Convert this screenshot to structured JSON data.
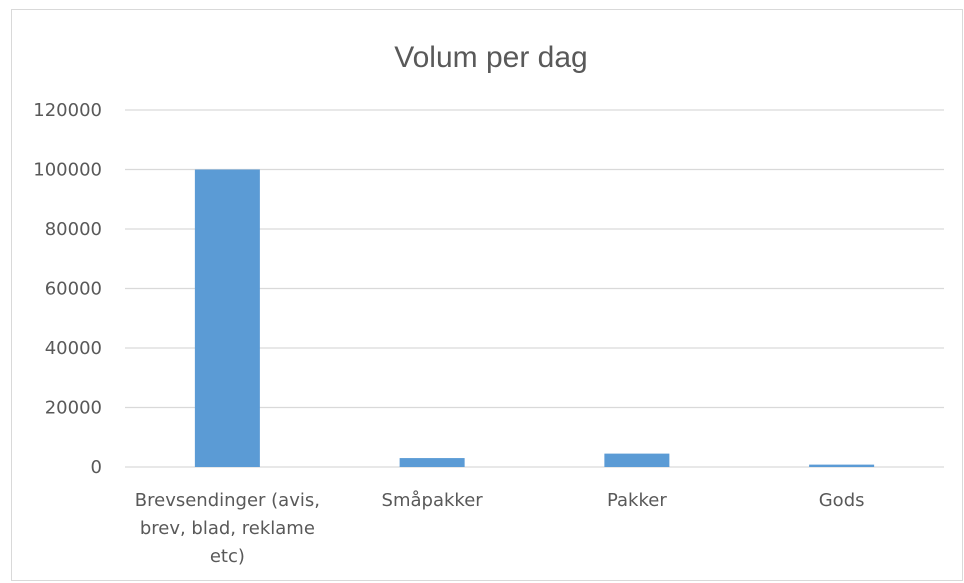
{
  "chart_data": {
    "type": "bar",
    "title": "Volum per dag",
    "categories": [
      [
        "Brevsendinger (avis,",
        "brev, blad, reklame",
        "etc)"
      ],
      [
        "Småpakker"
      ],
      [
        "Pakker"
      ],
      [
        "Gods"
      ]
    ],
    "values": [
      100000,
      3000,
      4500,
      800
    ],
    "ylim": [
      0,
      120000
    ],
    "yticks": [
      0,
      20000,
      40000,
      60000,
      80000,
      100000,
      120000
    ],
    "ytick_labels": [
      "0",
      "20000",
      "40000",
      "60000",
      "80000",
      "100000",
      "120000"
    ],
    "grid": true,
    "legend": "none",
    "colors": {
      "bar": "#5b9bd5",
      "grid": "#d9d9d9",
      "text": "#595959"
    }
  }
}
